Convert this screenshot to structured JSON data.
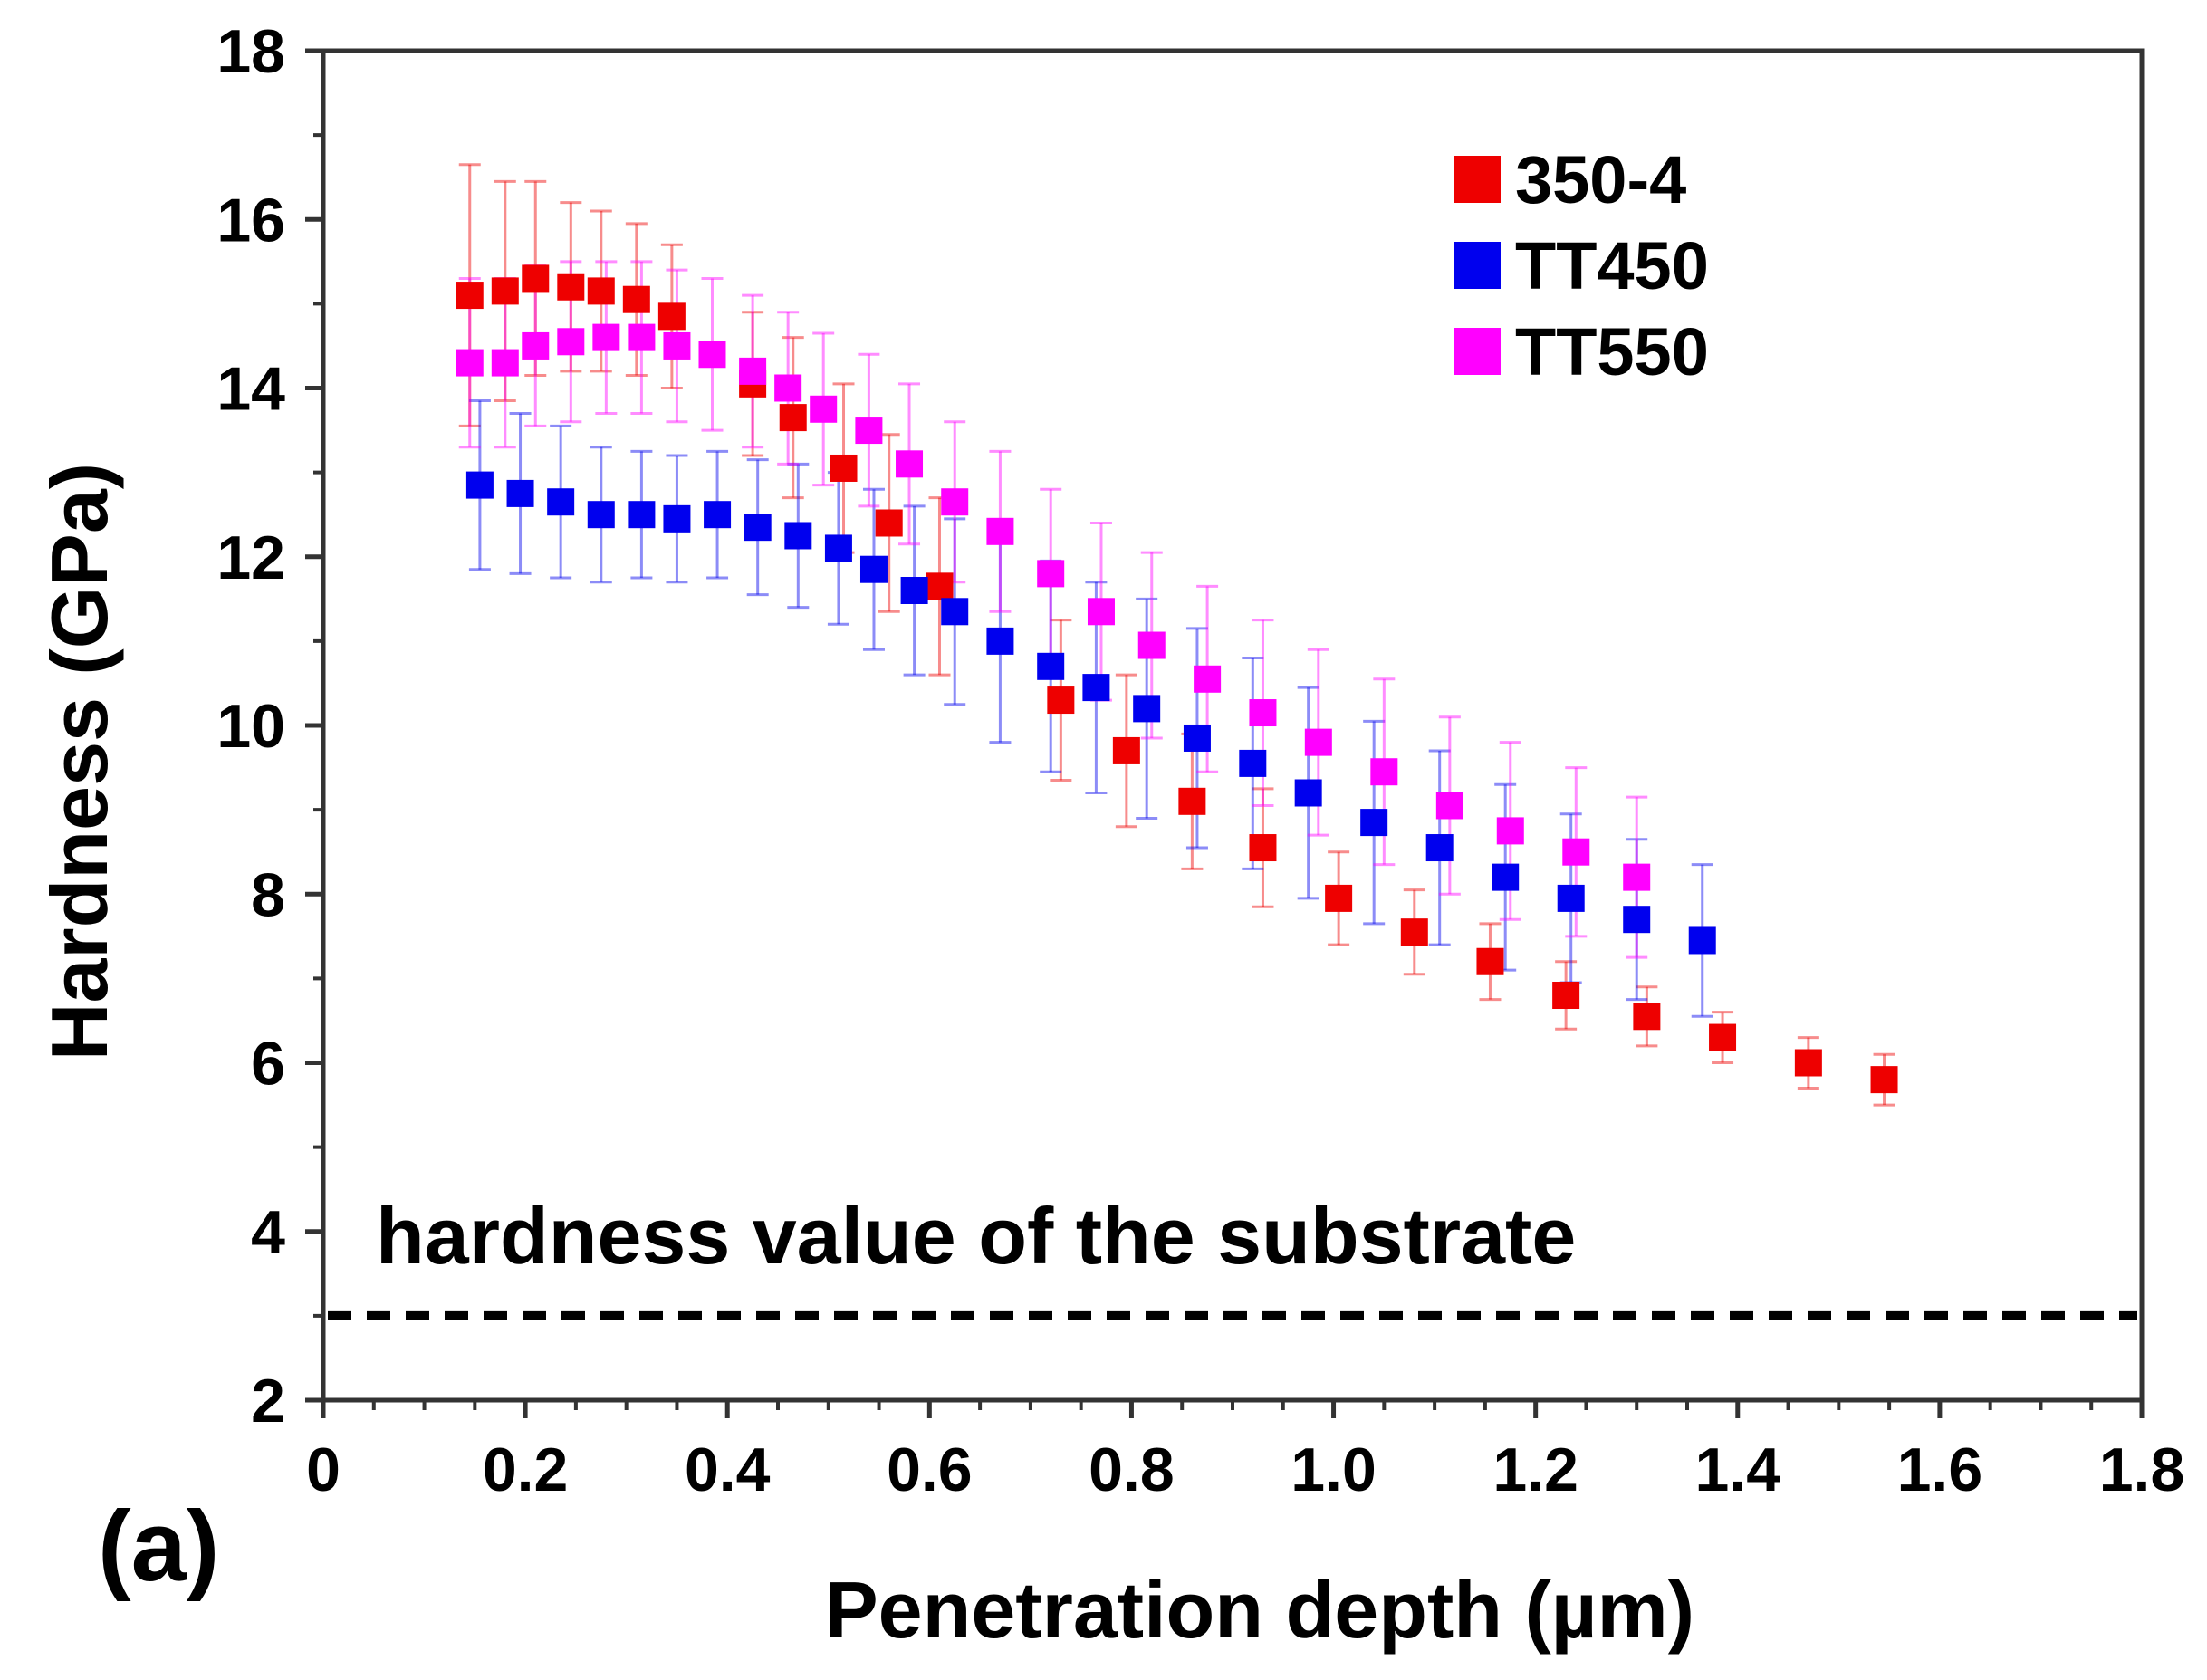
{
  "chart_data": {
    "type": "scatter",
    "title": "",
    "panel_label": "(a)",
    "xlabel": "Penetration depth (µm)",
    "ylabel": "Hardness (GPa)",
    "xlim": [
      0,
      1.8
    ],
    "ylim": [
      2,
      18
    ],
    "x_ticks": [
      0,
      0.2,
      0.4,
      0.6,
      0.8,
      1.0,
      1.2,
      1.4,
      1.6,
      1.8
    ],
    "x_tick_labels": [
      "0",
      "0.2",
      "0.4",
      "0.6",
      "0.8",
      "1.0",
      "1.2",
      "1.4",
      "1.6",
      "1.8"
    ],
    "y_ticks": [
      2,
      4,
      6,
      8,
      10,
      12,
      14,
      16,
      18
    ],
    "y_tick_labels": [
      "2",
      "4",
      "6",
      "8",
      "10",
      "12",
      "14",
      "16",
      "18"
    ],
    "grid": false,
    "legend_position": "top-right",
    "error_bars": true,
    "reference_line": {
      "y": 3.0,
      "style": "dashed",
      "label": "hardness value of the substrate"
    },
    "series": [
      {
        "name": "350-4",
        "color": "#ee0000",
        "x": [
          0.145,
          0.18,
          0.21,
          0.245,
          0.275,
          0.31,
          0.345,
          0.425,
          0.465,
          0.515,
          0.56,
          0.61,
          0.73,
          0.795,
          0.86,
          0.93,
          1.005,
          1.08,
          1.155,
          1.23,
          1.31,
          1.385,
          1.47,
          1.545
        ],
        "y": [
          15.1,
          15.15,
          15.3,
          15.2,
          15.15,
          15.05,
          14.85,
          14.05,
          13.65,
          13.05,
          12.4,
          11.65,
          10.3,
          9.7,
          9.1,
          8.55,
          7.95,
          7.55,
          7.2,
          6.8,
          6.55,
          6.3,
          6.0,
          5.8
        ],
        "err": [
          1.55,
          1.3,
          1.15,
          1.0,
          0.95,
          0.9,
          0.85,
          0.85,
          0.95,
          1.0,
          1.05,
          1.05,
          0.95,
          0.9,
          0.8,
          0.7,
          0.55,
          0.5,
          0.45,
          0.4,
          0.35,
          0.3,
          0.3,
          0.3
        ]
      },
      {
        "name": "TT450",
        "color": "#0000ee",
        "x": [
          0.155,
          0.195,
          0.235,
          0.275,
          0.315,
          0.35,
          0.39,
          0.43,
          0.47,
          0.51,
          0.545,
          0.585,
          0.625,
          0.67,
          0.72,
          0.765,
          0.815,
          0.865,
          0.92,
          0.975,
          1.04,
          1.105,
          1.17,
          1.235,
          1.3,
          1.365
        ],
        "y": [
          12.85,
          12.75,
          12.65,
          12.5,
          12.5,
          12.45,
          12.5,
          12.35,
          12.25,
          12.1,
          11.85,
          11.6,
          11.35,
          11.0,
          10.7,
          10.45,
          10.2,
          9.85,
          9.55,
          9.2,
          8.85,
          8.55,
          8.2,
          7.95,
          7.7,
          7.45
        ],
        "err": [
          1.0,
          0.95,
          0.9,
          0.8,
          0.75,
          0.75,
          0.75,
          0.8,
          0.85,
          0.9,
          0.95,
          1.0,
          1.1,
          1.2,
          1.25,
          1.25,
          1.3,
          1.3,
          1.25,
          1.25,
          1.2,
          1.15,
          1.1,
          1.0,
          0.95,
          0.9
        ]
      },
      {
        "name": "TT550",
        "color": "#ff00ff",
        "x": [
          0.145,
          0.18,
          0.21,
          0.245,
          0.28,
          0.315,
          0.35,
          0.385,
          0.425,
          0.46,
          0.495,
          0.54,
          0.58,
          0.625,
          0.67,
          0.72,
          0.77,
          0.82,
          0.875,
          0.93,
          0.985,
          1.05,
          1.115,
          1.175,
          1.24,
          1.3
        ],
        "y": [
          14.3,
          14.3,
          14.5,
          14.55,
          14.6,
          14.6,
          14.5,
          14.4,
          14.2,
          14.0,
          13.75,
          13.5,
          13.1,
          12.65,
          12.3,
          11.8,
          11.35,
          10.95,
          10.55,
          10.15,
          9.8,
          9.45,
          9.05,
          8.75,
          8.5,
          8.2
        ],
        "err": [
          1.0,
          1.0,
          0.95,
          0.95,
          0.9,
          0.9,
          0.9,
          0.9,
          0.9,
          0.9,
          0.9,
          0.9,
          0.95,
          0.95,
          0.95,
          1.0,
          1.05,
          1.1,
          1.1,
          1.1,
          1.1,
          1.1,
          1.05,
          1.05,
          1.0,
          0.95
        ]
      }
    ]
  }
}
